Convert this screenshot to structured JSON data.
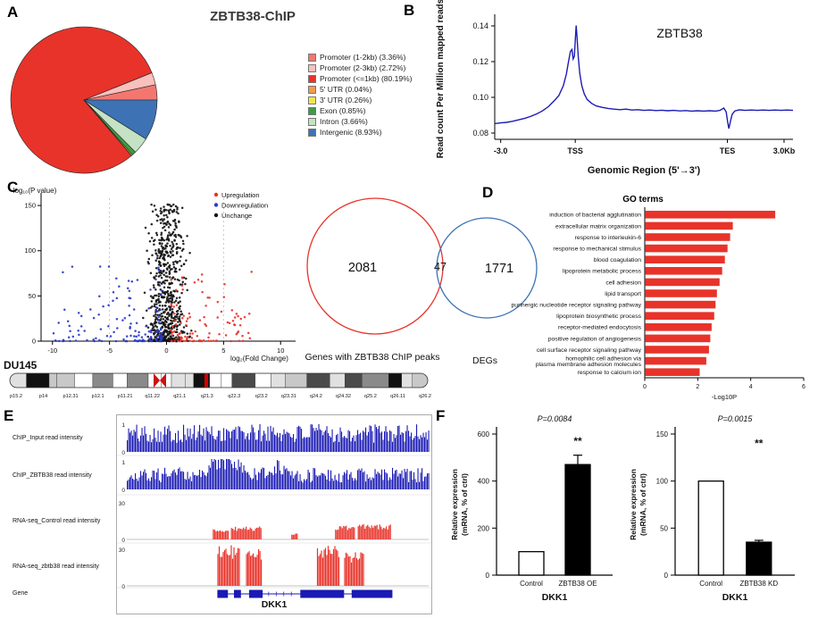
{
  "panels": {
    "a": {
      "letter": "A"
    },
    "b": {
      "letter": "B"
    },
    "c": {
      "letter": "C"
    },
    "d": {
      "letter": "D"
    },
    "e": {
      "letter": "E"
    },
    "f": {
      "letter": "F"
    }
  },
  "chart_data": [
    {
      "id": "pieA",
      "type": "pie",
      "title": "ZBTB38-ChIP",
      "slices": [
        {
          "label": "Promoter (1-2kb) (3.36%)",
          "value": 3.36,
          "color": "#f4776f"
        },
        {
          "label": "Promoter (2-3kb) (2.72%)",
          "value": 2.72,
          "color": "#f9c0bc"
        },
        {
          "label": "Promoter (<=1kb) (80.19%)",
          "value": 80.19,
          "color": "#e8332a"
        },
        {
          "label": "5' UTR (0.04%)",
          "value": 0.04,
          "color": "#f59b4c"
        },
        {
          "label": "3' UTR (0.26%)",
          "value": 0.26,
          "color": "#f3e64d"
        },
        {
          "label": "Exon (0.85%)",
          "value": 0.85,
          "color": "#3f9c47"
        },
        {
          "label": "Intron (3.66%)",
          "value": 3.66,
          "color": "#c6e2c4"
        },
        {
          "label": "Intergenic (8.93%)",
          "value": 8.93,
          "color": "#3d72b4"
        }
      ]
    },
    {
      "id": "lineB",
      "type": "line",
      "inside_label": "ZBTB38",
      "ylabel": "Read count Per Million mapped reads",
      "xlabel": "Genomic Region (5'→3')",
      "line_color": "#1c1cb4",
      "ylim": [
        0.0765,
        0.1445
      ],
      "yticks": [
        "0.08",
        "0.10",
        "0.12",
        "0.14"
      ],
      "xticks": [
        {
          "label": "-3.0",
          "pos": 0.02
        },
        {
          "label": "TSS",
          "pos": 0.27
        },
        {
          "label": "TES",
          "pos": 0.78
        },
        {
          "label": "3.0Kb",
          "pos": 0.97
        }
      ],
      "points": [
        [
          0,
          0.0853
        ],
        [
          2,
          0.0857
        ],
        [
          4,
          0.086
        ],
        [
          6,
          0.0866
        ],
        [
          8,
          0.0874
        ],
        [
          10,
          0.0882
        ],
        [
          12,
          0.0893
        ],
        [
          14,
          0.0907
        ],
        [
          16,
          0.0924
        ],
        [
          18,
          0.0948
        ],
        [
          20,
          0.0982
        ],
        [
          21.5,
          0.101
        ],
        [
          23,
          0.1065
        ],
        [
          24,
          0.113
        ],
        [
          24.8,
          0.1205
        ],
        [
          25.4,
          0.1258
        ],
        [
          25.9,
          0.1268
        ],
        [
          26.3,
          0.1215
        ],
        [
          26.7,
          0.123
        ],
        [
          27,
          0.132
        ],
        [
          27.3,
          0.1402
        ],
        [
          27.6,
          0.1335
        ],
        [
          28,
          0.123
        ],
        [
          28.5,
          0.1135
        ],
        [
          29.2,
          0.1065
        ],
        [
          30,
          0.102
        ],
        [
          31,
          0.0988
        ],
        [
          32.5,
          0.0966
        ],
        [
          34,
          0.0952
        ],
        [
          36,
          0.0944
        ],
        [
          38,
          0.0938
        ],
        [
          40,
          0.0934
        ],
        [
          42,
          0.0931
        ],
        [
          44,
          0.0934
        ],
        [
          46,
          0.0929
        ],
        [
          48,
          0.0931
        ],
        [
          50,
          0.0927
        ],
        [
          52,
          0.0929
        ],
        [
          54,
          0.0926
        ],
        [
          56,
          0.0928
        ],
        [
          58,
          0.0925
        ],
        [
          60,
          0.0927
        ],
        [
          62,
          0.0924
        ],
        [
          64,
          0.0926
        ],
        [
          66,
          0.0923
        ],
        [
          68,
          0.0925
        ],
        [
          70,
          0.0923
        ],
        [
          72,
          0.0925
        ],
        [
          74,
          0.0923
        ],
        [
          75.5,
          0.0927
        ],
        [
          76.8,
          0.094
        ],
        [
          77.6,
          0.0918
        ],
        [
          78.1,
          0.086
        ],
        [
          78.5,
          0.0825
        ],
        [
          79,
          0.0865
        ],
        [
          79.6,
          0.0905
        ],
        [
          80.5,
          0.0924
        ],
        [
          82,
          0.093
        ],
        [
          84,
          0.0927
        ],
        [
          86,
          0.0929
        ],
        [
          88,
          0.0927
        ],
        [
          90,
          0.0929
        ],
        [
          92,
          0.0927
        ],
        [
          94,
          0.0929
        ],
        [
          96,
          0.0927
        ],
        [
          98,
          0.0929
        ],
        [
          100,
          0.0927
        ]
      ]
    },
    {
      "id": "volcanoC",
      "type": "scatter",
      "ylabel": "-log₁₀(P value)",
      "xlabel": "log₂(Fold Change)",
      "xlim": [
        -11,
        11
      ],
      "ylim": [
        0,
        158
      ],
      "xticks": [
        -10,
        -5,
        0,
        5,
        10
      ],
      "yticks": [
        0,
        50,
        100,
        150
      ],
      "vlines": [
        -5,
        5
      ],
      "series": [
        {
          "name": "Upregulation",
          "color": "#e8332a",
          "n": 110,
          "x_range": [
            0.4,
            7.5
          ],
          "y_range": [
            0,
            80
          ]
        },
        {
          "name": "Downregulation",
          "color": "#2b3bc8",
          "n": 140,
          "x_range": [
            -10,
            -0.4
          ],
          "y_range": [
            0,
            85
          ]
        },
        {
          "name": "Unchange",
          "color": "#141414",
          "n": 650,
          "x_range": [
            -2.6,
            2.6
          ],
          "y_range": [
            0,
            152
          ]
        }
      ]
    },
    {
      "id": "vennC",
      "type": "venn",
      "left_count": "2081",
      "overlap_count": "47",
      "right_count": "1771",
      "left_label": "Genes with ZBTB38 ChIP peaks",
      "right_label": "DEGs",
      "left_color": "#e8332a",
      "right_color": "#3d72b4"
    },
    {
      "id": "goD",
      "type": "bar-horizontal",
      "title": "GO terms",
      "xlabel": "-Log10P",
      "xlim": [
        0,
        6
      ],
      "xticks": [
        0,
        2,
        4,
        6
      ],
      "bar_color": "#e8332a",
      "categories": [
        "induction of bacterial agglutination",
        "extracellular matrix organization",
        "response to interleukin-6",
        "response to mechanical stimulus",
        "blood coagulation",
        "lipoprotein metabolic process",
        "cell adhesion",
        "lipid transport",
        "purinergic nucleotide receptor signaling pathway",
        "lipoprotein biosynthetic process",
        "receptor-mediated endocytosis",
        "positive regulation of angiogenesis",
        "cell surface receptor signaling pathway",
        "homophilic cell adhesion via plasma membrane adhesion molecules",
        "response to calcium ion"
      ],
      "values": [
        4.9,
        3.3,
        3.2,
        3.1,
        3.0,
        2.9,
        2.8,
        2.7,
        2.65,
        2.6,
        2.5,
        2.45,
        2.4,
        2.3,
        2.05
      ]
    },
    {
      "id": "browserE",
      "type": "genome-browser",
      "cell_line": "DU145",
      "ideogram_bands": [
        "p15.2",
        "p14",
        "p12.31",
        "p12.1",
        "p11.21",
        "q11.22",
        "q21.1",
        "q21.3",
        "q22.3",
        "q23.2",
        "q23.31",
        "q24.2",
        "q24.32",
        "q25.2",
        "q26.11",
        "q26.2"
      ],
      "tracks": [
        {
          "label": "ChIP_Input read intensity",
          "scale_top": "1",
          "scale_bottom": "0",
          "color": "#1a1ab4",
          "kind": "chip-input"
        },
        {
          "label": "ChIP_ZBTB38 read intensity",
          "scale_top": "1",
          "scale_bottom": "0",
          "color": "#1a1ab4",
          "kind": "chip-peak"
        },
        {
          "label": "RNA-seq_Control read intensity",
          "scale_top": "30",
          "scale_bottom": "0",
          "color": "#e8332a",
          "kind": "rna-low"
        },
        {
          "label": "RNA-seq_zbtb38 read intensity",
          "scale_top": "30",
          "scale_bottom": "0",
          "color": "#e8332a",
          "kind": "rna-high"
        },
        {
          "label": "Gene",
          "color": "#1a1ab4",
          "kind": "gene"
        }
      ],
      "gene_label": "DKK1"
    },
    {
      "id": "barF1",
      "type": "bar",
      "p_value": "P=0.0084",
      "significance": "**",
      "ylabel": [
        "Relative expression",
        "(mRNA, % of ctrl)"
      ],
      "ylim": [
        0,
        600
      ],
      "yticks": [
        0,
        200,
        400,
        600
      ],
      "categories": [
        "Control",
        "ZBTB38 OE"
      ],
      "values": [
        100,
        470
      ],
      "errors": [
        0,
        40
      ],
      "bar_fills": [
        "#ffffff",
        "#000000"
      ],
      "sig_value": 555,
      "xlabel": "DKK1"
    },
    {
      "id": "barF2",
      "type": "bar",
      "p_value": "P=0.0015",
      "significance": "**",
      "ylabel": [
        "Relative expression",
        "(mRNA, % of ctrl)"
      ],
      "ylim": [
        0,
        150
      ],
      "yticks": [
        0,
        50,
        100,
        150
      ],
      "categories": [
        "Control",
        "ZBTB38 KD"
      ],
      "values": [
        100,
        35
      ],
      "errors": [
        0,
        2
      ],
      "bar_fills": [
        "#ffffff",
        "#000000"
      ],
      "sig_value": 136,
      "xlabel": "DKK1"
    }
  ]
}
